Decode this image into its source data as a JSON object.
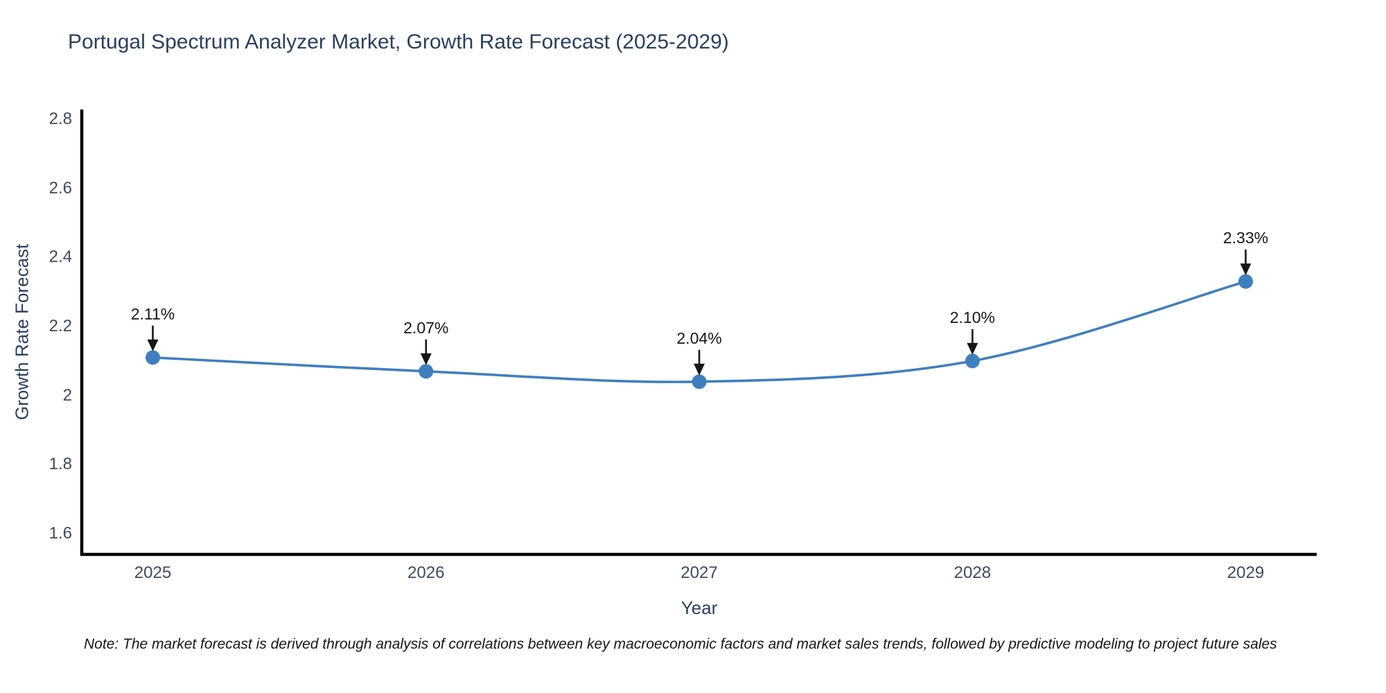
{
  "title": "Portugal Spectrum Analyzer Market, Growth Rate Forecast (2025-2029)",
  "note": "Note: The market forecast is derived through analysis of correlations between key macroeconomic factors and market sales trends, followed by predictive modeling to project future sales",
  "chart_data": {
    "type": "line",
    "title": "Portugal Spectrum Analyzer Market, Growth Rate Forecast (2025-2029)",
    "xlabel": "Year",
    "ylabel": "Growth Rate Forecast",
    "x": [
      2025,
      2026,
      2027,
      2028,
      2029
    ],
    "series": [
      {
        "name": "Growth Rate Forecast",
        "values": [
          2.11,
          2.07,
          2.04,
          2.1,
          2.33
        ],
        "point_labels": [
          "2.11%",
          "2.07%",
          "2.04%",
          "2.10%",
          "2.33%"
        ]
      }
    ],
    "xtick_labels": [
      "2025",
      "2026",
      "2027",
      "2028",
      "2029"
    ],
    "ytick_values": [
      1.6,
      1.8,
      2.0,
      2.2,
      2.4,
      2.6,
      2.8
    ],
    "ytick_labels": [
      "1.6",
      "1.8",
      "2",
      "2.2",
      "2.4",
      "2.6",
      "2.8"
    ],
    "xlim": [
      2024.74,
      2029.26
    ],
    "ylim": [
      1.54,
      2.824
    ],
    "grid": false,
    "legend": "none",
    "line_shape": "spline",
    "line_color": "#3f7fbf",
    "marker_color": "#3f7fbf",
    "axis_color": "#000000",
    "annotation_color": "#161616",
    "annotation_arrow": "down"
  }
}
